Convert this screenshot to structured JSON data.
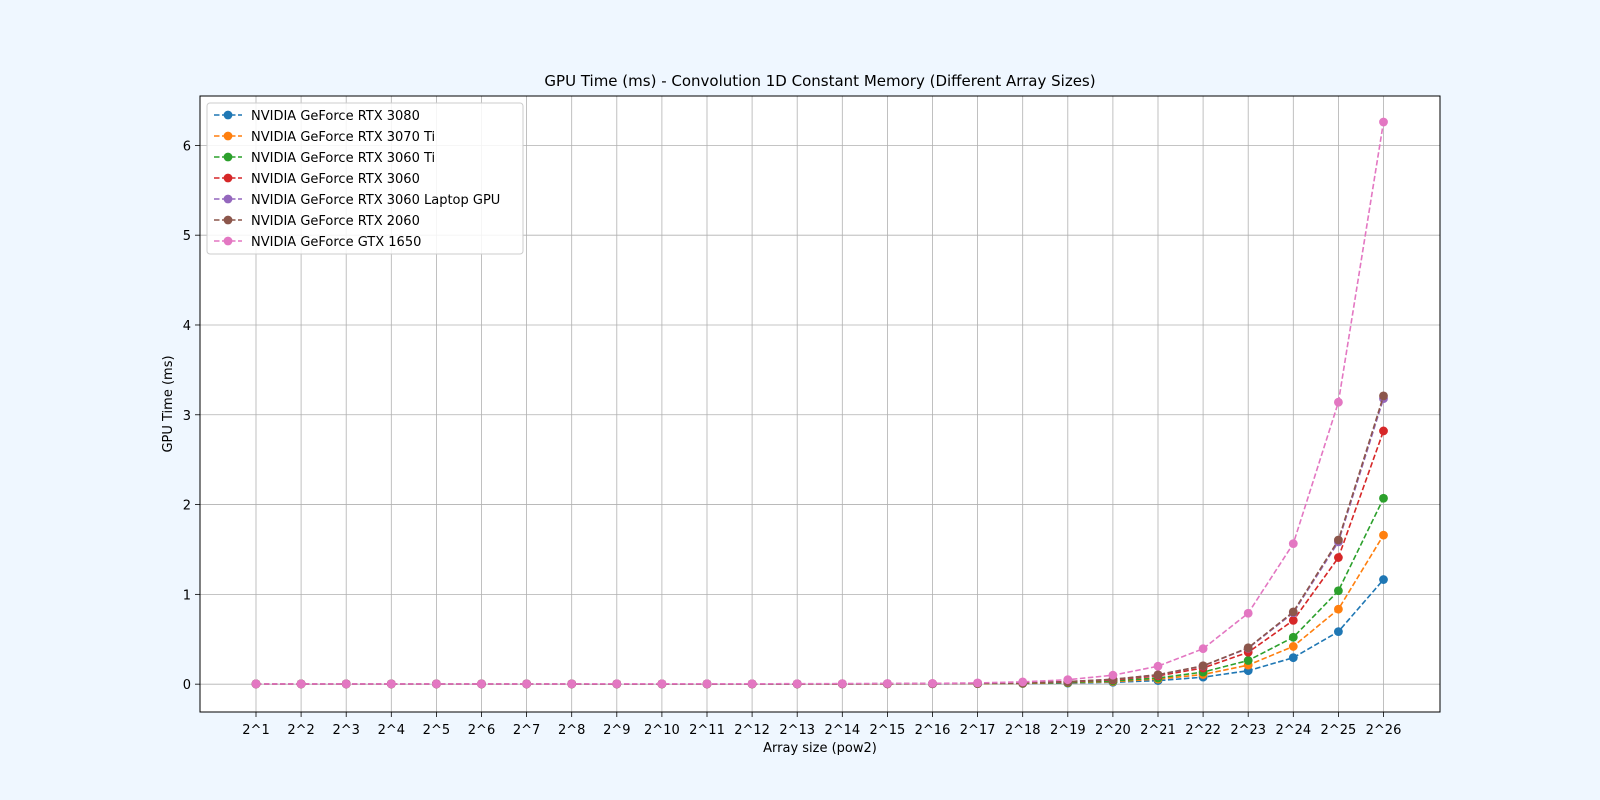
{
  "chart_data": {
    "type": "line",
    "title": "GPU Time (ms) - Convolution 1D Constant Memory (Different Array Sizes)",
    "xlabel": "Array size (pow2)",
    "ylabel": "GPU Time (ms)",
    "categories": [
      "2^1",
      "2^2",
      "2^3",
      "2^4",
      "2^5",
      "2^6",
      "2^7",
      "2^8",
      "2^9",
      "2^10",
      "2^11",
      "2^12",
      "2^13",
      "2^14",
      "2^15",
      "2^16",
      "2^17",
      "2^18",
      "2^19",
      "2^20",
      "2^21",
      "2^22",
      "2^23",
      "2^24",
      "2^25",
      "2^26"
    ],
    "ylim": [
      -0.31,
      6.55
    ],
    "yticks": [
      0,
      1,
      2,
      3,
      4,
      5,
      6
    ],
    "grid": true,
    "legend_position": "upper-left",
    "line_style": "dashed",
    "marker": "circle",
    "series": [
      {
        "name": "NVIDIA GeForce RTX 3080",
        "color": "#1f77b4",
        "values": [
          0.003,
          0.003,
          0.003,
          0.003,
          0.003,
          0.003,
          0.003,
          0.003,
          0.003,
          0.003,
          0.003,
          0.003,
          0.003,
          0.003,
          0.004,
          0.004,
          0.005,
          0.007,
          0.012,
          0.021,
          0.04,
          0.078,
          0.15,
          0.295,
          0.585,
          1.165
        ]
      },
      {
        "name": "NVIDIA GeForce RTX 3070 Ti",
        "color": "#ff7f0e",
        "values": [
          0.003,
          0.003,
          0.003,
          0.003,
          0.003,
          0.003,
          0.003,
          0.003,
          0.003,
          0.003,
          0.003,
          0.003,
          0.003,
          0.003,
          0.004,
          0.004,
          0.006,
          0.009,
          0.016,
          0.029,
          0.056,
          0.108,
          0.212,
          0.42,
          0.835,
          1.66
        ]
      },
      {
        "name": "NVIDIA GeForce RTX 3060 Ti",
        "color": "#2ca02c",
        "values": [
          0.003,
          0.003,
          0.003,
          0.003,
          0.003,
          0.003,
          0.003,
          0.003,
          0.003,
          0.003,
          0.003,
          0.003,
          0.003,
          0.004,
          0.004,
          0.005,
          0.007,
          0.011,
          0.019,
          0.036,
          0.069,
          0.134,
          0.264,
          0.522,
          1.04,
          2.07
        ]
      },
      {
        "name": "NVIDIA GeForce RTX 3060",
        "color": "#d62728",
        "values": [
          0.003,
          0.003,
          0.003,
          0.003,
          0.003,
          0.003,
          0.003,
          0.003,
          0.003,
          0.003,
          0.003,
          0.003,
          0.003,
          0.004,
          0.004,
          0.006,
          0.009,
          0.014,
          0.025,
          0.048,
          0.092,
          0.18,
          0.355,
          0.71,
          1.41,
          2.82
        ]
      },
      {
        "name": "NVIDIA GeForce RTX 3060 Laptop GPU",
        "color": "#9467bd",
        "values": [
          0.003,
          0.003,
          0.003,
          0.003,
          0.003,
          0.003,
          0.003,
          0.003,
          0.003,
          0.003,
          0.003,
          0.003,
          0.003,
          0.004,
          0.005,
          0.006,
          0.01,
          0.016,
          0.028,
          0.053,
          0.103,
          0.202,
          0.4,
          0.795,
          1.585,
          3.18
        ]
      },
      {
        "name": "NVIDIA GeForce RTX 2060",
        "color": "#8c564b",
        "values": [
          0.003,
          0.003,
          0.003,
          0.003,
          0.003,
          0.003,
          0.003,
          0.003,
          0.003,
          0.003,
          0.003,
          0.003,
          0.003,
          0.004,
          0.005,
          0.006,
          0.01,
          0.016,
          0.029,
          0.054,
          0.105,
          0.205,
          0.405,
          0.805,
          1.605,
          3.21
        ]
      },
      {
        "name": "NVIDIA GeForce GTX 1650",
        "color": "#e377c2",
        "values": [
          0.003,
          0.003,
          0.003,
          0.003,
          0.003,
          0.003,
          0.003,
          0.003,
          0.004,
          0.004,
          0.004,
          0.004,
          0.005,
          0.006,
          0.007,
          0.009,
          0.014,
          0.025,
          0.05,
          0.1,
          0.2,
          0.395,
          0.79,
          1.565,
          3.14,
          6.26
        ]
      }
    ]
  }
}
